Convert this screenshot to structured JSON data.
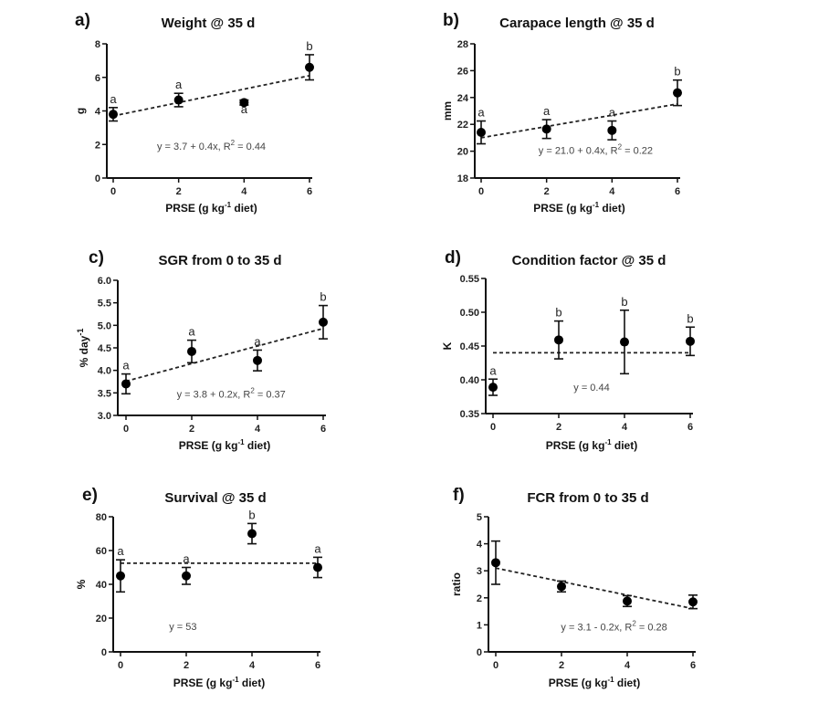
{
  "figure": {
    "x_axis_label_main": "PRSE (g kg",
    "x_axis_label_sup": "-1",
    "x_axis_label_end": " diet)"
  },
  "chart_data": [
    {
      "type": "scatter",
      "panel": "a)",
      "title": "Weight @ 35 d",
      "xlabel": "PRSE (g kg-1 diet)",
      "ylabel": "g",
      "ylabel_sup": "",
      "x": [
        0,
        2,
        4,
        6
      ],
      "xticks": [
        0,
        2,
        4,
        6
      ],
      "xlim": [
        0,
        6
      ],
      "ylim": [
        0,
        8
      ],
      "yticks": [
        "0",
        "2",
        "4",
        "6",
        "8"
      ],
      "ytick_values": [
        0,
        2,
        4,
        6,
        8
      ],
      "series": [
        {
          "name": "mean",
          "values": [
            3.8,
            4.65,
            4.5,
            6.6
          ],
          "errors": [
            0.4,
            0.4,
            0.15,
            0.75
          ]
        }
      ],
      "significance": [
        "a",
        "a",
        "a",
        "b"
      ],
      "significance_below": [
        false,
        false,
        true,
        false
      ],
      "fit": {
        "intercept": 3.7,
        "slope": 0.4
      },
      "equation_text": "y = 3.7 + 0.4x, R",
      "equation_sup": "2",
      "equation_end": " = 0.44",
      "equation_pos": [
        3.0,
        1.7
      ]
    },
    {
      "type": "scatter",
      "panel": "b)",
      "title": "Carapace length @ 35 d",
      "xlabel": "PRSE (g kg-1 diet)",
      "ylabel": "mm",
      "ylabel_sup": "",
      "x": [
        0,
        2,
        4,
        6
      ],
      "xticks": [
        0,
        2,
        4,
        6
      ],
      "xlim": [
        0,
        6
      ],
      "ylim": [
        18,
        28
      ],
      "yticks": [
        "18",
        "20",
        "22",
        "24",
        "26",
        "28"
      ],
      "ytick_values": [
        18,
        20,
        22,
        24,
        26,
        28
      ],
      "series": [
        {
          "name": "mean",
          "values": [
            21.4,
            21.65,
            21.55,
            24.35
          ],
          "errors": [
            0.85,
            0.7,
            0.7,
            0.95
          ]
        }
      ],
      "significance": [
        "a",
        "a",
        "a",
        "b"
      ],
      "significance_below": [
        false,
        false,
        false,
        false
      ],
      "fit": {
        "intercept": 21.0,
        "slope": 0.42
      },
      "equation_text": "y = 21.0 + 0.4x, R",
      "equation_sup": "2",
      "equation_end": " = 0.22",
      "equation_pos": [
        3.5,
        19.8
      ]
    },
    {
      "type": "scatter",
      "panel": "c)",
      "title": "SGR from 0 to 35 d",
      "xlabel": "PRSE (g kg-1 diet)",
      "ylabel": "% day",
      "ylabel_sup": "-1",
      "x": [
        0,
        2,
        4,
        6
      ],
      "xticks": [
        0,
        2,
        4,
        6
      ],
      "xlim": [
        0,
        6
      ],
      "ylim": [
        3.0,
        6.0
      ],
      "yticks": [
        "3.0",
        "3.5",
        "4.0",
        "4.5",
        "5.0",
        "5.5",
        "6.0"
      ],
      "ytick_values": [
        3.0,
        3.5,
        4.0,
        4.5,
        5.0,
        5.5,
        6.0
      ],
      "series": [
        {
          "name": "mean",
          "values": [
            3.7,
            4.42,
            4.22,
            5.07
          ],
          "errors": [
            0.22,
            0.25,
            0.23,
            0.37
          ]
        }
      ],
      "significance": [
        "a",
        "a",
        "a",
        "b"
      ],
      "significance_below": [
        false,
        false,
        false,
        false
      ],
      "fit": {
        "intercept": 3.76,
        "slope": 0.195
      },
      "equation_text": "y = 3.8 + 0.2x, R",
      "equation_sup": "2",
      "equation_end": " = 0.37",
      "equation_pos": [
        3.2,
        3.4
      ]
    },
    {
      "type": "scatter",
      "panel": "d)",
      "title": "Condition factor @ 35 d",
      "xlabel": "PRSE (g kg-1 diet)",
      "ylabel": "K",
      "ylabel_sup": "",
      "x": [
        0,
        2,
        4,
        6
      ],
      "xticks": [
        0,
        2,
        4,
        6
      ],
      "xlim": [
        0,
        6
      ],
      "ylim": [
        0.35,
        0.55
      ],
      "yticks": [
        "0.35",
        "0.40",
        "0.45",
        "0.50",
        "0.55"
      ],
      "ytick_values": [
        0.35,
        0.4,
        0.45,
        0.5,
        0.55
      ],
      "series": [
        {
          "name": "mean",
          "values": [
            0.389,
            0.459,
            0.456,
            0.457
          ],
          "errors": [
            0.012,
            0.028,
            0.047,
            0.021
          ]
        }
      ],
      "significance": [
        "a",
        "b",
        "b",
        "b"
      ],
      "significance_below": [
        false,
        false,
        false,
        false
      ],
      "fit": {
        "intercept": 0.44,
        "slope": 0
      },
      "equation_text": "y = 0.44",
      "equation_sup": "",
      "equation_end": "",
      "equation_pos": [
        3.0,
        0.384
      ]
    },
    {
      "type": "scatter",
      "panel": "e)",
      "title": "Survival @ 35 d",
      "xlabel": "PRSE (g kg-1 diet)",
      "ylabel": "%",
      "ylabel_sup": "",
      "x": [
        0,
        2,
        4,
        6
      ],
      "xticks": [
        0,
        2,
        4,
        6
      ],
      "xlim": [
        0,
        6
      ],
      "ylim": [
        0,
        80
      ],
      "yticks": [
        "0",
        "20",
        "40",
        "60",
        "80"
      ],
      "ytick_values": [
        0,
        20,
        40,
        60,
        80
      ],
      "series": [
        {
          "name": "mean",
          "values": [
            45,
            45,
            70,
            50
          ],
          "errors": [
            9.5,
            5,
            6,
            6
          ]
        }
      ],
      "significance": [
        "a",
        "a",
        "b",
        "a"
      ],
      "significance_below": [
        false,
        false,
        false,
        false
      ],
      "fit": {
        "intercept": 52.5,
        "slope": 0
      },
      "equation_text": "y = 53",
      "equation_sup": "",
      "equation_end": "",
      "equation_pos": [
        1.9,
        13
      ]
    },
    {
      "type": "scatter",
      "panel": "f)",
      "title": "FCR from 0 to 35 d",
      "xlabel": "PRSE (g kg-1 diet)",
      "ylabel": "ratio",
      "ylabel_sup": "",
      "x": [
        0,
        2,
        4,
        6
      ],
      "xticks": [
        0,
        2,
        4,
        6
      ],
      "xlim": [
        0,
        6
      ],
      "ylim": [
        0,
        5
      ],
      "yticks": [
        "0",
        "1",
        "2",
        "3",
        "4",
        "5"
      ],
      "ytick_values": [
        0,
        1,
        2,
        3,
        4,
        5
      ],
      "series": [
        {
          "name": "mean",
          "values": [
            3.3,
            2.42,
            1.88,
            1.85
          ],
          "errors": [
            0.8,
            0.2,
            0.2,
            0.25
          ]
        }
      ],
      "significance": [
        "",
        "",
        "",
        ""
      ],
      "significance_below": [
        false,
        false,
        false,
        false
      ],
      "fit": {
        "intercept": 3.1,
        "slope": -0.25
      },
      "equation_text": "y = 3.1 - 0.2x, R",
      "equation_sup": "2",
      "equation_end": " = 0.28",
      "equation_pos": [
        3.6,
        0.8
      ]
    }
  ]
}
